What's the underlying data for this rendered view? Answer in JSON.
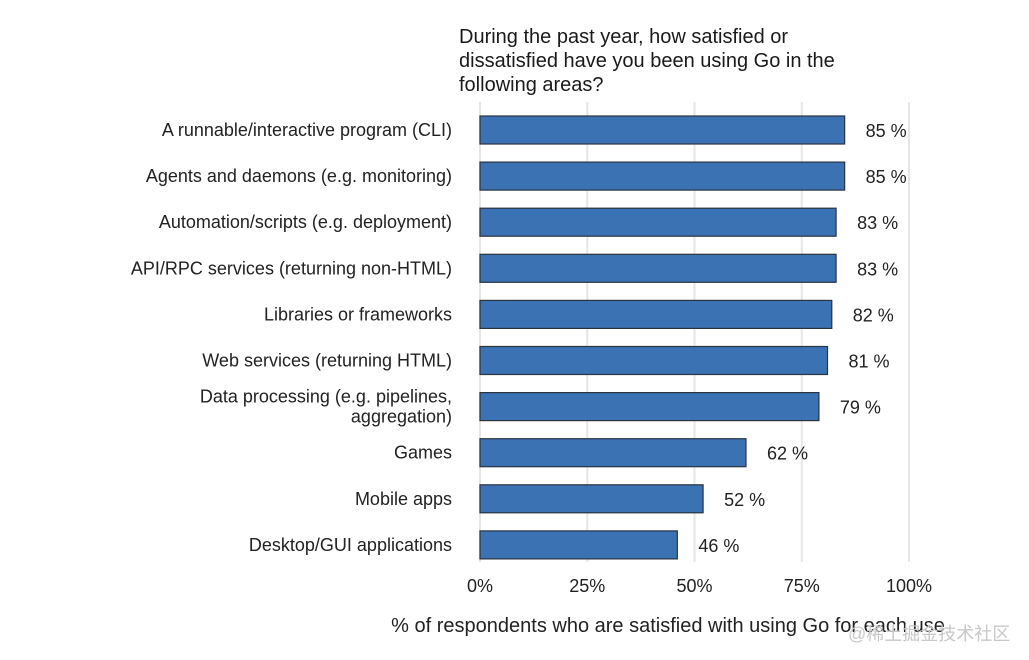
{
  "chart_data": {
    "type": "bar",
    "orientation": "horizontal",
    "title_lines": [
      "During the past year, how satisfied or",
      "dissatisfied have you been using Go in the",
      "following areas?"
    ],
    "xlabel": "% of respondents who are satisfied with using Go for each use",
    "ylabel": "",
    "xlim": [
      0,
      100
    ],
    "x_ticks": [
      0,
      25,
      50,
      75,
      100
    ],
    "x_tick_labels": [
      "0%",
      "25%",
      "50%",
      "75%",
      "100%"
    ],
    "grid": "vertical",
    "bar_color": "#3a72b4",
    "bar_edge_color": "#2a3340",
    "categories": [
      [
        "A runnable/interactive program (CLI)"
      ],
      [
        "Agents and daemons (e.g. monitoring)"
      ],
      [
        "Automation/scripts (e.g. deployment)"
      ],
      [
        "API/RPC services (returning non-HTML)"
      ],
      [
        "Libraries or frameworks"
      ],
      [
        "Web services (returning HTML)"
      ],
      [
        "Data processing (e.g. pipelines,",
        "aggregation)"
      ],
      [
        "Games"
      ],
      [
        "Mobile apps"
      ],
      [
        "Desktop/GUI applications"
      ]
    ],
    "values": [
      85,
      85,
      83,
      83,
      82,
      81,
      79,
      62,
      52,
      46
    ],
    "value_labels": [
      "85 %",
      "85 %",
      "83 %",
      "83 %",
      "82 %",
      "81 %",
      "79 %",
      "62 %",
      "52 %",
      "46 %"
    ]
  },
  "watermark": "@稀土掘金技术社区"
}
